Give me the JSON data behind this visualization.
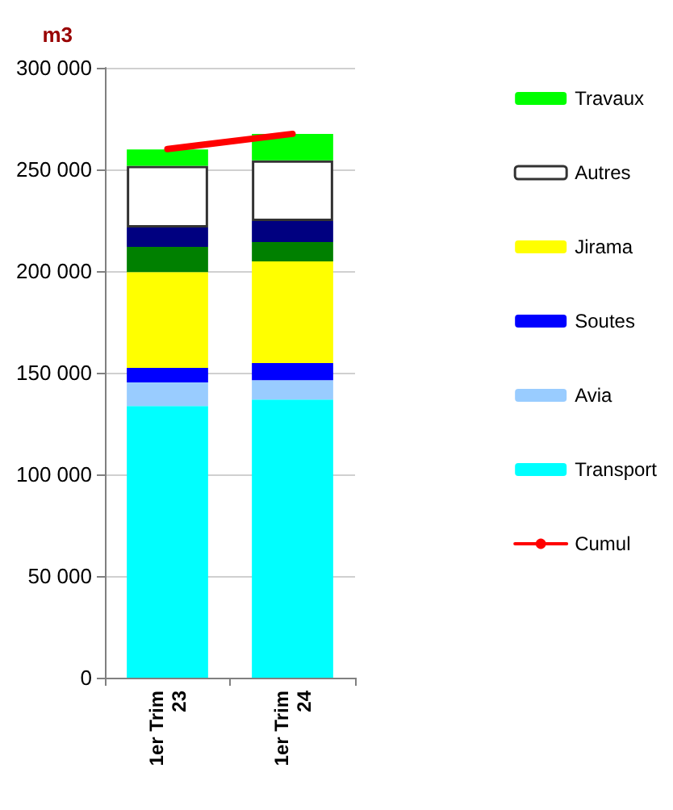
{
  "chart_data": {
    "type": "bar",
    "stacked": true,
    "ylabel": "m3",
    "categories": [
      "1er Trim 23",
      "1er Trim 24"
    ],
    "series": [
      {
        "name": "Transport",
        "color": "#00ffff",
        "values": [
          133600,
          136800
        ]
      },
      {
        "name": "Avia",
        "color": "#99ccff",
        "values": [
          11600,
          9500
        ]
      },
      {
        "name": "Soutes",
        "color": "#0000ff",
        "values": [
          7200,
          8500
        ]
      },
      {
        "name": "Jirama",
        "color": "#ffff00",
        "values": [
          47100,
          50000
        ]
      },
      {
        "color": "#008000",
        "values": [
          12400,
          9500
        ]
      },
      {
        "color": "#000080",
        "values": [
          9500,
          10300
        ]
      },
      {
        "name": "Autres",
        "color": "#ffffff",
        "values": [
          30400,
          29900
        ]
      },
      {
        "name": "Travaux",
        "color": "#00ff00",
        "values": [
          8000,
          13000
        ]
      },
      {
        "name": "Cumul",
        "type": "line",
        "color": "#ff0000",
        "values": [
          260000,
          267500
        ]
      }
    ],
    "ylim": [
      0,
      300000
    ],
    "yticks": [
      {
        "value": 0,
        "label": "0"
      },
      {
        "value": 50000,
        "label": "50 000"
      },
      {
        "value": 100000,
        "label": "100 000"
      },
      {
        "value": 150000,
        "label": "150 000"
      },
      {
        "value": 200000,
        "label": "200 000"
      },
      {
        "value": 250000,
        "label": "250 000"
      },
      {
        "value": 300000,
        "label": "300 000"
      }
    ],
    "grid": "y",
    "legend": "right"
  }
}
